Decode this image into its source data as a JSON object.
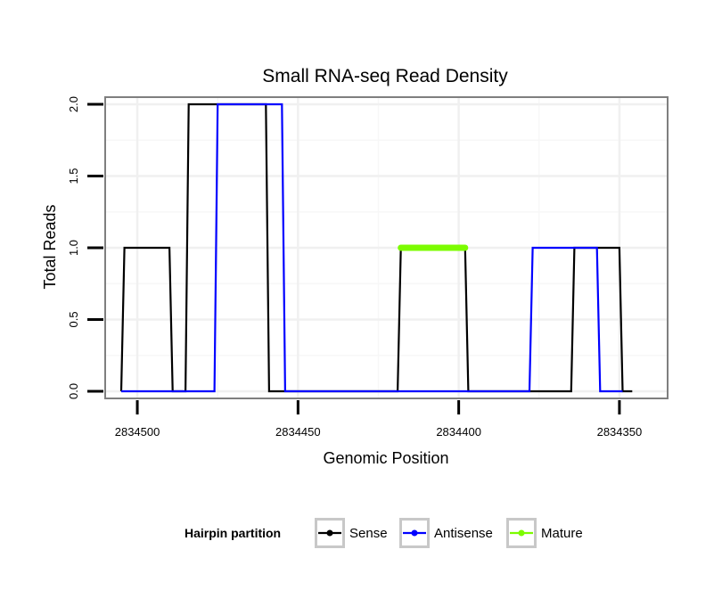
{
  "chart_data": {
    "type": "line",
    "title": "Small RNA-seq Read Density",
    "xlabel": "Genomic Position",
    "ylabel": "Total Reads",
    "x_reversed": true,
    "xlim": [
      2834510,
      2834335
    ],
    "ylim": [
      -0.05,
      2.05
    ],
    "x_ticks": [
      2834500,
      2834450,
      2834400,
      2834350
    ],
    "x_tick_labels": [
      "2834500",
      "2834450",
      "2834400",
      "2834350"
    ],
    "y_ticks": [
      0,
      0.5,
      1,
      1.5,
      2
    ],
    "y_tick_labels": [
      "0.0",
      "0.5",
      "1.0",
      "1.5",
      "2.0"
    ],
    "grid": true,
    "legend_title": "Hairpin partition",
    "legend_position": "bottom",
    "series": [
      {
        "name": "Sense",
        "color": "#000000",
        "x": [
          2834505,
          2834504,
          2834490,
          2834489,
          2834485,
          2834484,
          2834460,
          2834459,
          2834455,
          2834454,
          2834419,
          2834418,
          2834398,
          2834397,
          2834365,
          2834364,
          2834350,
          2834349,
          2834346
        ],
        "y": [
          0,
          1,
          1,
          0,
          0,
          2,
          2,
          0,
          0,
          0,
          0,
          1,
          1,
          0,
          0,
          1,
          1,
          0,
          0
        ]
      },
      {
        "name": "Antisense",
        "color": "#0000ff",
        "x": [
          2834505,
          2834476,
          2834475,
          2834455,
          2834454,
          2834378,
          2834377,
          2834365,
          2834364,
          2834357,
          2834356,
          2834349
        ],
        "y": [
          0,
          0,
          2,
          2,
          0,
          0,
          1,
          1,
          1,
          1,
          0,
          0
        ]
      },
      {
        "name": "Mature",
        "color": "#7cfc00",
        "x": [
          2834418,
          2834398
        ],
        "y": [
          1,
          1
        ]
      }
    ]
  }
}
